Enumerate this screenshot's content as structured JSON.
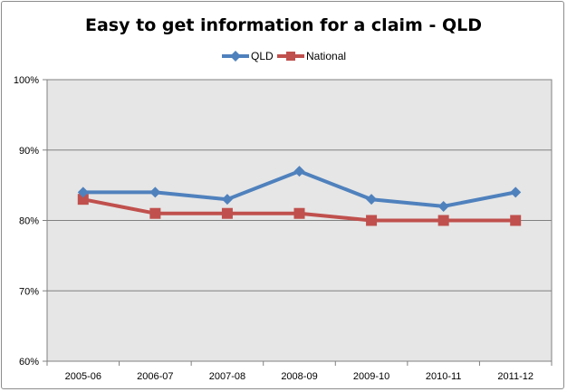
{
  "chart_data": {
    "type": "line",
    "title": "Easy to get information for a claim - QLD",
    "categories": [
      "2005-06",
      "2006-07",
      "2007-08",
      "2008-09",
      "2009-10",
      "2010-11",
      "2011-12"
    ],
    "series": [
      {
        "name": "QLD",
        "values": [
          84,
          84,
          83,
          87,
          83,
          82,
          84
        ],
        "color": "#4f81bd",
        "marker": "diamond"
      },
      {
        "name": "National",
        "values": [
          83,
          81,
          81,
          81,
          80,
          80,
          80
        ],
        "color": "#c0504d",
        "marker": "square"
      }
    ],
    "ylim": [
      60,
      100
    ],
    "yticks": [
      "60%",
      "70%",
      "80%",
      "90%",
      "100%"
    ],
    "xlabel": "",
    "ylabel": "",
    "grid": true,
    "legend": "top",
    "plot_background": "#e6e6e6"
  }
}
